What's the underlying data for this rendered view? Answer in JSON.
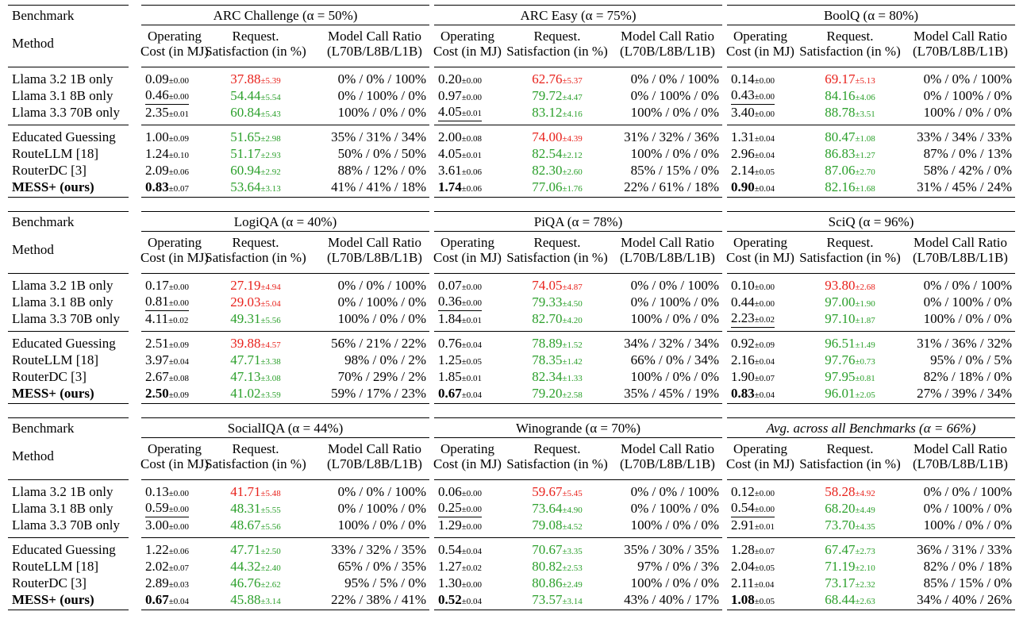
{
  "labels": {
    "benchmark": "Benchmark",
    "method": "Method",
    "col_cost_1": "Operating",
    "col_cost_2": "Cost (in MJ)",
    "col_sat_1": "Request.",
    "col_sat_2": "Satisfaction (in %)",
    "col_ratio_1": "Model Call Ratio",
    "col_ratio_2": "(L70B/L8B/L1B)"
  },
  "blocks": [
    {
      "methods": [
        "Llama 3.2 1B only",
        "Llama 3.1 8B only",
        "Llama 3.3 70B only",
        "Educated Guessing",
        "RouteLLM [18]",
        "RouterDC [3]",
        "MESS+ (ours)"
      ],
      "benchmarks": [
        {
          "name": "ARC Challenge (α = 50%)",
          "rows": [
            {
              "cost": "0.09",
              "cost_sd": "±0.00",
              "sat": "37.88",
              "sat_sd": "±5.39",
              "sat_color": "red",
              "ratio": "0% / 0% / 100%"
            },
            {
              "cost": "0.46",
              "cost_sd": "±0.00",
              "sat": "54.44",
              "sat_sd": "±5.54",
              "sat_color": "green",
              "ratio": "0% / 100% / 0%"
            },
            {
              "cost": "2.35",
              "cost_sd": "±0.01",
              "sat": "60.84",
              "sat_sd": "±5.43",
              "sat_color": "green",
              "ratio": "100% / 0% / 0%"
            },
            {
              "cost": "1.00",
              "cost_sd": "±0.09",
              "sat": "51.65",
              "sat_sd": "±2.98",
              "sat_color": "green",
              "ratio": "35% / 31% / 34%"
            },
            {
              "cost": "1.24",
              "cost_sd": "±0.10",
              "sat": "51.17",
              "sat_sd": "±2.93",
              "sat_color": "green",
              "ratio": "50% / 0% / 50%"
            },
            {
              "cost": "2.09",
              "cost_sd": "±0.06",
              "sat": "60.94",
              "sat_sd": "±2.92",
              "sat_color": "green",
              "ratio": "88% / 12% / 0%"
            },
            {
              "cost": "0.83",
              "cost_sd": "±0.07",
              "sat": "53.64",
              "sat_sd": "±3.13",
              "sat_color": "green",
              "ratio": "41% / 41% / 18%"
            }
          ]
        },
        {
          "name": "ARC Easy (α = 75%)",
          "rows": [
            {
              "cost": "0.20",
              "cost_sd": "±0.00",
              "sat": "62.76",
              "sat_sd": "±5.37",
              "sat_color": "red",
              "ratio": "0% / 0% / 100%"
            },
            {
              "cost": "0.97",
              "cost_sd": "±0.00",
              "sat": "79.72",
              "sat_sd": "±4.47",
              "sat_color": "green",
              "ratio": "0% / 100% / 0%"
            },
            {
              "cost": "4.05",
              "cost_sd": "±0.01",
              "sat": "83.12",
              "sat_sd": "±4.16",
              "sat_color": "green",
              "ratio": "100% / 0% / 0%"
            },
            {
              "cost": "2.00",
              "cost_sd": "±0.08",
              "sat": "74.00",
              "sat_sd": "±4.39",
              "sat_color": "red",
              "ratio": "31% / 32% / 36%"
            },
            {
              "cost": "4.05",
              "cost_sd": "±0.01",
              "sat": "82.54",
              "sat_sd": "±2.12",
              "sat_color": "green",
              "ratio": "100% / 0% / 0%"
            },
            {
              "cost": "3.61",
              "cost_sd": "±0.06",
              "sat": "82.30",
              "sat_sd": "±2.60",
              "sat_color": "green",
              "ratio": "85% / 15% / 0%"
            },
            {
              "cost": "1.74",
              "cost_sd": "±0.06",
              "sat": "77.06",
              "sat_sd": "±1.76",
              "sat_color": "green",
              "ratio": "22% / 61% / 18%"
            }
          ]
        },
        {
          "name": "BoolQ (α = 80%)",
          "rows": [
            {
              "cost": "0.14",
              "cost_sd": "±0.00",
              "sat": "69.17",
              "sat_sd": "±5.13",
              "sat_color": "red",
              "ratio": "0% / 0% / 100%"
            },
            {
              "cost": "0.43",
              "cost_sd": "±0.00",
              "sat": "84.16",
              "sat_sd": "±4.06",
              "sat_color": "green",
              "ratio": "0% / 100% / 0%"
            },
            {
              "cost": "3.40",
              "cost_sd": "±0.00",
              "sat": "88.78",
              "sat_sd": "±3.51",
              "sat_color": "green",
              "ratio": "100% / 0% / 0%"
            },
            {
              "cost": "1.31",
              "cost_sd": "±0.04",
              "sat": "80.47",
              "sat_sd": "±1.08",
              "sat_color": "green",
              "ratio": "33% / 34% / 33%"
            },
            {
              "cost": "2.96",
              "cost_sd": "±0.04",
              "sat": "86.83",
              "sat_sd": "±1.27",
              "sat_color": "green",
              "ratio": "87% / 0% / 13%"
            },
            {
              "cost": "2.14",
              "cost_sd": "±0.05",
              "sat": "87.06",
              "sat_sd": "±2.70",
              "sat_color": "green",
              "ratio": "58% / 42% / 0%"
            },
            {
              "cost": "0.90",
              "cost_sd": "±0.04",
              "sat": "82.16",
              "sat_sd": "±1.68",
              "sat_color": "green",
              "ratio": "31% / 45% / 24%"
            }
          ]
        }
      ]
    },
    {
      "methods": [
        "Llama 3.2 1B only",
        "Llama 3.1 8B only",
        "Llama 3.3 70B only",
        "Educated Guessing",
        "RouteLLM [18]",
        "RouterDC [3]",
        "MESS+ (ours)"
      ],
      "benchmarks": [
        {
          "name": "LogiQA (α = 40%)",
          "rows": [
            {
              "cost": "0.17",
              "cost_sd": "±0.00",
              "sat": "27.19",
              "sat_sd": "±4.94",
              "sat_color": "red",
              "ratio": "0% / 0% / 100%"
            },
            {
              "cost": "0.81",
              "cost_sd": "±0.00",
              "sat": "29.03",
              "sat_sd": "±5.04",
              "sat_color": "red",
              "ratio": "0% / 100% / 0%"
            },
            {
              "cost": "4.11",
              "cost_sd": "±0.02",
              "sat": "49.31",
              "sat_sd": "±5.56",
              "sat_color": "green",
              "ratio": "100% / 0% / 0%"
            },
            {
              "cost": "2.51",
              "cost_sd": "±0.09",
              "sat": "39.88",
              "sat_sd": "±4.57",
              "sat_color": "red",
              "ratio": "56% / 21% / 22%"
            },
            {
              "cost": "3.97",
              "cost_sd": "±0.04",
              "sat": "47.71",
              "sat_sd": "±3.38",
              "sat_color": "green",
              "ratio": "98% / 0% / 2%"
            },
            {
              "cost": "2.67",
              "cost_sd": "±0.08",
              "sat": "47.13",
              "sat_sd": "±3.08",
              "sat_color": "green",
              "ratio": "70% / 29% / 2%"
            },
            {
              "cost": "2.50",
              "cost_sd": "±0.09",
              "sat": "41.02",
              "sat_sd": "±3.59",
              "sat_color": "green",
              "ratio": "59% / 17% / 23%"
            }
          ]
        },
        {
          "name": "PiQA (α = 78%)",
          "rows": [
            {
              "cost": "0.07",
              "cost_sd": "±0.00",
              "sat": "74.05",
              "sat_sd": "±4.87",
              "sat_color": "red",
              "ratio": "0% / 0% / 100%"
            },
            {
              "cost": "0.36",
              "cost_sd": "±0.00",
              "sat": "79.33",
              "sat_sd": "±4.50",
              "sat_color": "green",
              "ratio": "0% / 100% / 0%"
            },
            {
              "cost": "1.84",
              "cost_sd": "±0.01",
              "sat": "82.70",
              "sat_sd": "±4.20",
              "sat_color": "green",
              "ratio": "100% / 0% / 0%"
            },
            {
              "cost": "0.76",
              "cost_sd": "±0.04",
              "sat": "78.89",
              "sat_sd": "±1.52",
              "sat_color": "green",
              "ratio": "34% / 32% / 34%"
            },
            {
              "cost": "1.25",
              "cost_sd": "±0.05",
              "sat": "78.35",
              "sat_sd": "±1.42",
              "sat_color": "green",
              "ratio": "66% / 0% / 34%"
            },
            {
              "cost": "1.85",
              "cost_sd": "±0.01",
              "sat": "82.34",
              "sat_sd": "±1.33",
              "sat_color": "green",
              "ratio": "100% / 0% / 0%"
            },
            {
              "cost": "0.67",
              "cost_sd": "±0.04",
              "sat": "79.20",
              "sat_sd": "±2.58",
              "sat_color": "green",
              "ratio": "35% / 45% / 19%"
            }
          ]
        },
        {
          "name": "SciQ (α = 96%)",
          "rows": [
            {
              "cost": "0.10",
              "cost_sd": "±0.00",
              "sat": "93.80",
              "sat_sd": "±2.68",
              "sat_color": "red",
              "ratio": "0% / 0% / 100%"
            },
            {
              "cost": "0.44",
              "cost_sd": "±0.00",
              "sat": "97.00",
              "sat_sd": "±1.90",
              "sat_color": "green",
              "ratio": "0% / 100% / 0%"
            },
            {
              "cost": "2.23",
              "cost_sd": "±0.02",
              "sat": "97.10",
              "sat_sd": "±1.87",
              "sat_color": "green",
              "ratio": "100% / 0% / 0%"
            },
            {
              "cost": "0.92",
              "cost_sd": "±0.09",
              "sat": "96.51",
              "sat_sd": "±1.49",
              "sat_color": "green",
              "ratio": "31% / 36% / 32%"
            },
            {
              "cost": "2.16",
              "cost_sd": "±0.04",
              "sat": "97.76",
              "sat_sd": "±0.73",
              "sat_color": "green",
              "ratio": "95% / 0% / 5%"
            },
            {
              "cost": "1.90",
              "cost_sd": "±0.07",
              "sat": "97.95",
              "sat_sd": "±0.81",
              "sat_color": "green",
              "ratio": "82% / 18% / 0%"
            },
            {
              "cost": "0.83",
              "cost_sd": "±0.04",
              "sat": "96.01",
              "sat_sd": "±2.05",
              "sat_color": "green",
              "ratio": "27% / 39% / 34%"
            }
          ]
        }
      ]
    },
    {
      "methods": [
        "Llama 3.2 1B only",
        "Llama 3.1 8B only",
        "Llama 3.3 70B only",
        "Educated Guessing",
        "RouteLLM [18]",
        "RouterDC [3]",
        "MESS+ (ours)"
      ],
      "benchmarks": [
        {
          "name": "SocialIQA (α = 44%)",
          "rows": [
            {
              "cost": "0.13",
              "cost_sd": "±0.00",
              "sat": "41.71",
              "sat_sd": "±5.48",
              "sat_color": "red",
              "ratio": "0% / 0% / 100%"
            },
            {
              "cost": "0.59",
              "cost_sd": "±0.00",
              "sat": "48.31",
              "sat_sd": "±5.55",
              "sat_color": "green",
              "ratio": "0% / 100% / 0%"
            },
            {
              "cost": "3.00",
              "cost_sd": "±0.00",
              "sat": "48.67",
              "sat_sd": "±5.56",
              "sat_color": "green",
              "ratio": "100% / 0% / 0%"
            },
            {
              "cost": "1.22",
              "cost_sd": "±0.06",
              "sat": "47.71",
              "sat_sd": "±2.50",
              "sat_color": "green",
              "ratio": "33% / 32% / 35%"
            },
            {
              "cost": "2.02",
              "cost_sd": "±0.07",
              "sat": "44.32",
              "sat_sd": "±2.40",
              "sat_color": "green",
              "ratio": "65% / 0% / 35%"
            },
            {
              "cost": "2.89",
              "cost_sd": "±0.03",
              "sat": "46.76",
              "sat_sd": "±2.62",
              "sat_color": "green",
              "ratio": "95% / 5% / 0%"
            },
            {
              "cost": "0.67",
              "cost_sd": "±0.04",
              "sat": "45.88",
              "sat_sd": "±3.14",
              "sat_color": "green",
              "ratio": "22% / 38% / 41%"
            }
          ]
        },
        {
          "name": "Winogrande (α = 70%)",
          "rows": [
            {
              "cost": "0.06",
              "cost_sd": "±0.00",
              "sat": "59.67",
              "sat_sd": "±5.45",
              "sat_color": "red",
              "ratio": "0% / 0% / 100%"
            },
            {
              "cost": "0.25",
              "cost_sd": "±0.00",
              "sat": "73.64",
              "sat_sd": "±4.90",
              "sat_color": "green",
              "ratio": "0% / 100% / 0%"
            },
            {
              "cost": "1.29",
              "cost_sd": "±0.00",
              "sat": "79.08",
              "sat_sd": "±4.52",
              "sat_color": "green",
              "ratio": "100% / 0% / 0%"
            },
            {
              "cost": "0.54",
              "cost_sd": "±0.04",
              "sat": "70.67",
              "sat_sd": "±3.35",
              "sat_color": "green",
              "ratio": "35% / 30% / 35%"
            },
            {
              "cost": "1.27",
              "cost_sd": "±0.02",
              "sat": "80.82",
              "sat_sd": "±2.53",
              "sat_color": "green",
              "ratio": "97% / 0% / 3%"
            },
            {
              "cost": "1.30",
              "cost_sd": "±0.00",
              "sat": "80.86",
              "sat_sd": "±2.49",
              "sat_color": "green",
              "ratio": "100% / 0% / 0%"
            },
            {
              "cost": "0.52",
              "cost_sd": "±0.04",
              "sat": "73.57",
              "sat_sd": "±3.14",
              "sat_color": "green",
              "ratio": "43% / 40% / 17%"
            }
          ]
        },
        {
          "name": "Avg. across all Benchmarks (α = 66%)",
          "italic": true,
          "rows": [
            {
              "cost": "0.12",
              "cost_sd": "±0.00",
              "sat": "58.28",
              "sat_sd": "±4.92",
              "sat_color": "red",
              "ratio": "0% / 0% / 100%"
            },
            {
              "cost": "0.54",
              "cost_sd": "±0.00",
              "sat": "68.20",
              "sat_sd": "±4.49",
              "sat_color": "green",
              "ratio": "0% / 100% / 0%"
            },
            {
              "cost": "2.91",
              "cost_sd": "±0.01",
              "sat": "73.70",
              "sat_sd": "±4.35",
              "sat_color": "green",
              "ratio": "100% / 0% / 0%"
            },
            {
              "cost": "1.28",
              "cost_sd": "±0.07",
              "sat": "67.47",
              "sat_sd": "±2.73",
              "sat_color": "green",
              "ratio": "36% / 31% / 33%"
            },
            {
              "cost": "2.04",
              "cost_sd": "±0.05",
              "sat": "71.19",
              "sat_sd": "±2.10",
              "sat_color": "green",
              "ratio": "82% / 0% / 18%"
            },
            {
              "cost": "2.11",
              "cost_sd": "±0.04",
              "sat": "73.17",
              "sat_sd": "±2.32",
              "sat_color": "green",
              "ratio": "85% / 15% / 0%"
            },
            {
              "cost": "1.08",
              "cost_sd": "±0.05",
              "sat": "68.44",
              "sat_sd": "±2.63",
              "sat_color": "green",
              "ratio": "34% / 40% / 26%"
            }
          ]
        }
      ]
    }
  ]
}
